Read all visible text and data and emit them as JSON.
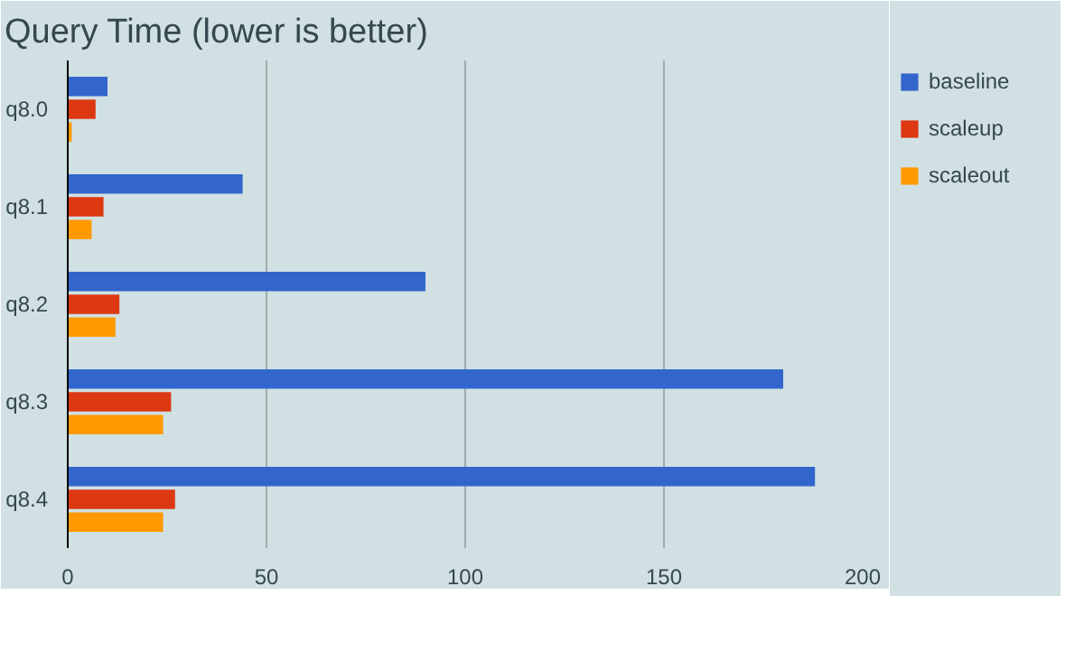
{
  "chart_data": {
    "type": "bar",
    "orientation": "horizontal",
    "title": "Query Time (lower is better)",
    "categories": [
      "q8.0",
      "q8.1",
      "q8.2",
      "q8.3",
      "q8.4"
    ],
    "series": [
      {
        "name": "baseline",
        "color": "#3366cc",
        "values": [
          10,
          44,
          90,
          180,
          188
        ]
      },
      {
        "name": "scaleup",
        "color": "#dc3912",
        "values": [
          7,
          9,
          13,
          26,
          27
        ]
      },
      {
        "name": "scaleout",
        "color": "#ff9900",
        "values": [
          1,
          6,
          12,
          24,
          24
        ]
      }
    ],
    "xlim": [
      0,
      200
    ],
    "xticks": [
      0,
      50,
      100,
      150,
      200
    ],
    "grid": "x",
    "legend": "top right"
  }
}
